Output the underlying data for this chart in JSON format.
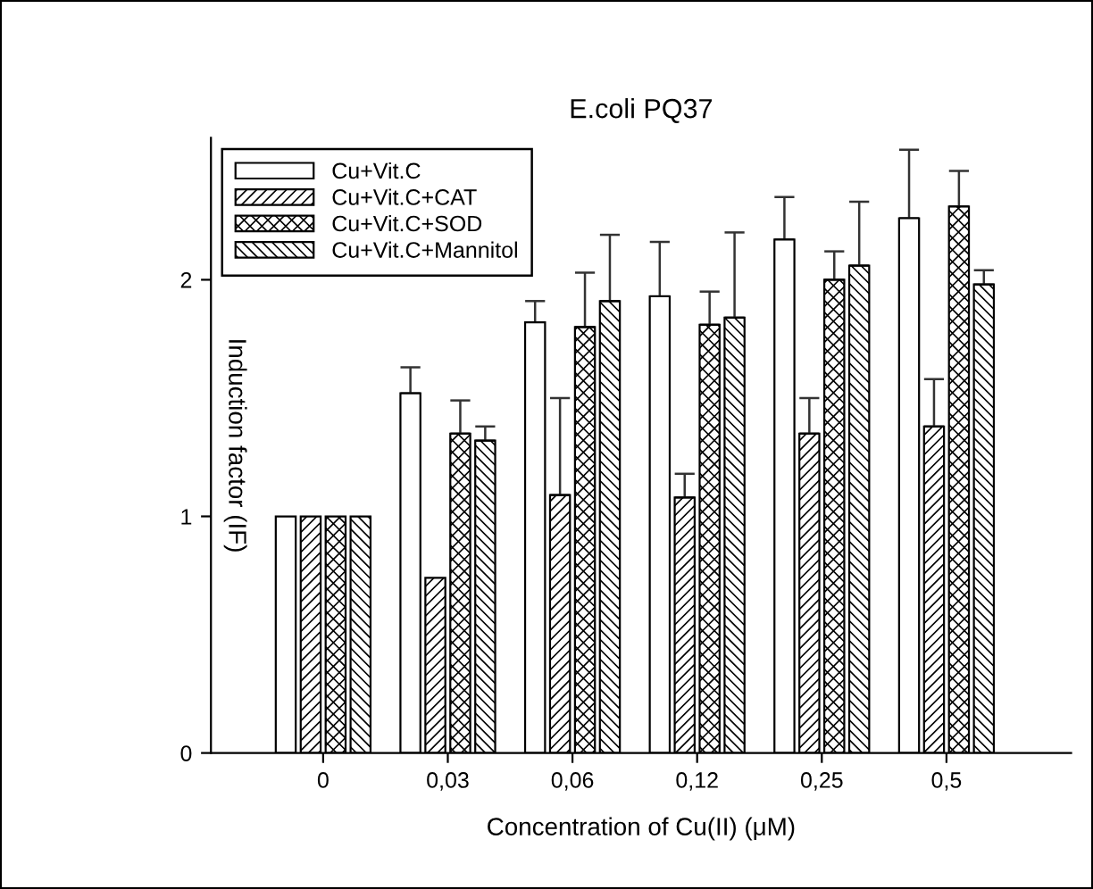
{
  "chart_data": {
    "type": "bar",
    "title": "E.coli PQ37",
    "xlabel": "Concentration of Cu(II) (μM)",
    "ylabel": "Induction factor (IF)",
    "categories": [
      "0",
      "0,03",
      "0,06",
      "0,12",
      "0,25",
      "0,5"
    ],
    "series": [
      {
        "name": "Cu+Vit.C",
        "color": "#ffffff",
        "values": [
          1.0,
          1.52,
          1.82,
          1.93,
          2.17,
          2.26
        ],
        "errors": [
          null,
          [
            1.52,
            1.63
          ],
          [
            1.82,
            1.91
          ],
          [
            1.93,
            2.16
          ],
          [
            2.17,
            2.35
          ],
          [
            2.26,
            2.55
          ]
        ]
      },
      {
        "name": "Cu+Vit.C+CAT",
        "color": "#000000",
        "values": [
          1.0,
          0.74,
          1.09,
          1.08,
          1.35,
          1.38
        ],
        "errors": [
          null,
          null,
          [
            1.09,
            1.5
          ],
          [
            1.08,
            1.18
          ],
          [
            1.35,
            1.5
          ],
          [
            1.38,
            1.58
          ]
        ]
      },
      {
        "name": "Cu+Vit.C+SOD",
        "color": "#000000",
        "values": [
          1.0,
          1.35,
          1.8,
          1.81,
          2.0,
          2.31
        ],
        "errors": [
          null,
          [
            1.35,
            1.49
          ],
          [
            1.8,
            2.03
          ],
          [
            1.81,
            1.95
          ],
          [
            2.0,
            2.12
          ],
          [
            2.31,
            2.46
          ]
        ]
      },
      {
        "name": "Cu+Vit.C+Mannitol",
        "color": "#000000",
        "values": [
          1.0,
          1.32,
          1.91,
          1.84,
          2.06,
          1.98
        ],
        "errors": [
          null,
          [
            1.32,
            1.38
          ],
          [
            1.91,
            2.19
          ],
          [
            1.84,
            2.2
          ],
          [
            2.06,
            2.33
          ],
          [
            1.98,
            2.04
          ]
        ]
      }
    ],
    "ylim": [
      0,
      2.6
    ],
    "yticks": [
      0,
      1,
      2
    ],
    "grid": false,
    "legend": "top left"
  }
}
